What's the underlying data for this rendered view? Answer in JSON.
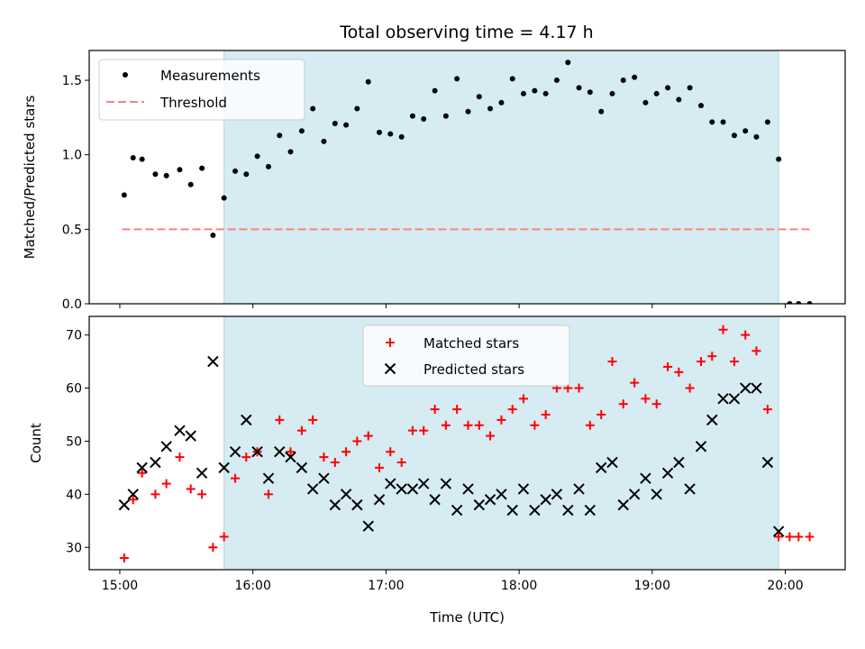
{
  "title": "Total observing time = 4.17 h",
  "colors": {
    "span": "#add8e6",
    "measurement": "#000000",
    "threshold": "#ff8080",
    "matched": "#ff0000",
    "predicted": "#000000"
  },
  "chart_data": [
    {
      "type": "scatter",
      "ylabel": "Matched/Predicted stars",
      "xlim": [
        14.77,
        20.45
      ],
      "ylim": [
        0,
        1.7
      ],
      "yticks": [
        0.0,
        0.5,
        1.0,
        1.5
      ],
      "ytick_labels": [
        "0.0",
        "0.5",
        "1.0",
        "1.5"
      ],
      "legend_position": "upper left",
      "highlight_span": [
        15.783,
        19.95
      ],
      "threshold": {
        "name": "Threshold",
        "value": 0.5,
        "x": [
          15.017,
          20.183
        ],
        "style": "dashed"
      },
      "series": [
        {
          "name": "Measurements",
          "x": [
            15.033,
            15.1,
            15.167,
            15.267,
            15.35,
            15.45,
            15.533,
            15.617,
            15.7,
            15.783,
            15.867,
            15.95,
            16.033,
            16.117,
            16.2,
            16.283,
            16.367,
            16.45,
            16.533,
            16.617,
            16.7,
            16.783,
            16.867,
            16.95,
            17.033,
            17.117,
            17.2,
            17.283,
            17.367,
            17.45,
            17.533,
            17.617,
            17.7,
            17.783,
            17.867,
            17.95,
            18.033,
            18.117,
            18.2,
            18.283,
            18.367,
            18.45,
            18.533,
            18.617,
            18.7,
            18.783,
            18.867,
            18.95,
            19.033,
            19.117,
            19.2,
            19.283,
            19.367,
            19.45,
            19.533,
            19.617,
            19.7,
            19.783,
            19.867,
            19.95,
            20.033,
            20.1,
            20.183
          ],
          "y": [
            0.73,
            0.98,
            0.97,
            0.87,
            0.86,
            0.9,
            0.8,
            0.91,
            0.46,
            0.71,
            0.89,
            0.87,
            0.99,
            0.92,
            1.13,
            1.02,
            1.16,
            1.31,
            1.09,
            1.21,
            1.2,
            1.31,
            1.49,
            1.15,
            1.14,
            1.12,
            1.26,
            1.24,
            1.43,
            1.26,
            1.51,
            1.29,
            1.39,
            1.31,
            1.35,
            1.51,
            1.41,
            1.43,
            1.41,
            1.5,
            1.62,
            1.45,
            1.42,
            1.29,
            1.41,
            1.5,
            1.52,
            1.35,
            1.41,
            1.45,
            1.37,
            1.45,
            1.33,
            1.22,
            1.22,
            1.13,
            1.16,
            1.12,
            1.22,
            0.97,
            0.0,
            0.0,
            0.0
          ]
        }
      ]
    },
    {
      "type": "scatter",
      "xlabel": "Time (UTC)",
      "ylabel": "Count",
      "xlim": [
        14.77,
        20.45
      ],
      "ylim": [
        25.8,
        73.5
      ],
      "xticks": [
        15,
        16,
        17,
        18,
        19,
        20
      ],
      "xtick_labels": [
        "15:00",
        "16:00",
        "17:00",
        "18:00",
        "19:00",
        "20:00"
      ],
      "yticks": [
        30,
        40,
        50,
        60,
        70
      ],
      "ytick_labels": [
        "30",
        "40",
        "50",
        "60",
        "70"
      ],
      "legend_position": "upper center",
      "highlight_span": [
        15.783,
        19.95
      ],
      "series": [
        {
          "name": "Matched stars",
          "marker": "+",
          "x": [
            15.033,
            15.1,
            15.167,
            15.267,
            15.35,
            15.45,
            15.533,
            15.617,
            15.7,
            15.783,
            15.867,
            15.95,
            16.033,
            16.117,
            16.2,
            16.283,
            16.367,
            16.45,
            16.533,
            16.617,
            16.7,
            16.783,
            16.867,
            16.95,
            17.033,
            17.117,
            17.2,
            17.283,
            17.367,
            17.45,
            17.533,
            17.617,
            17.7,
            17.783,
            17.867,
            17.95,
            18.033,
            18.117,
            18.2,
            18.283,
            18.367,
            18.45,
            18.533,
            18.617,
            18.7,
            18.783,
            18.867,
            18.95,
            19.033,
            19.117,
            19.2,
            19.283,
            19.367,
            19.45,
            19.533,
            19.617,
            19.7,
            19.783,
            19.867,
            19.95,
            20.033,
            20.1,
            20.183
          ],
          "y": [
            28,
            39,
            44,
            40,
            42,
            47,
            41,
            40,
            30,
            32,
            43,
            47,
            48,
            40,
            54,
            48,
            52,
            54,
            47,
            46,
            48,
            50,
            51,
            45,
            48,
            46,
            52,
            52,
            56,
            53,
            56,
            53,
            53,
            51,
            54,
            56,
            58,
            53,
            55,
            60,
            60,
            60,
            53,
            55,
            65,
            57,
            61,
            58,
            57,
            64,
            63,
            60,
            65,
            66,
            71,
            65,
            70,
            67,
            56,
            32,
            32,
            32,
            32
          ]
        },
        {
          "name": "Predicted stars",
          "marker": "x",
          "x": [
            15.033,
            15.1,
            15.167,
            15.267,
            15.35,
            15.45,
            15.533,
            15.617,
            15.7,
            15.783,
            15.867,
            15.95,
            16.033,
            16.117,
            16.2,
            16.283,
            16.367,
            16.45,
            16.533,
            16.617,
            16.7,
            16.783,
            16.867,
            16.95,
            17.033,
            17.117,
            17.2,
            17.283,
            17.367,
            17.45,
            17.533,
            17.617,
            17.7,
            17.783,
            17.867,
            17.95,
            18.033,
            18.117,
            18.2,
            18.283,
            18.367,
            18.45,
            18.533,
            18.617,
            18.7,
            18.783,
            18.867,
            18.95,
            19.033,
            19.117,
            19.2,
            19.283,
            19.367,
            19.45,
            19.533,
            19.617,
            19.7,
            19.783,
            19.867,
            19.95
          ],
          "y": [
            38,
            40,
            45,
            46,
            49,
            52,
            51,
            44,
            65,
            45,
            48,
            54,
            48,
            43,
            48,
            47,
            45,
            41,
            43,
            38,
            40,
            38,
            34,
            39,
            42,
            41,
            41,
            42,
            39,
            42,
            37,
            41,
            38,
            39,
            40,
            37,
            41,
            37,
            39,
            40,
            37,
            41,
            37,
            45,
            46,
            38,
            40,
            43,
            40,
            44,
            46,
            41,
            49,
            54,
            58,
            58,
            60,
            60,
            46,
            33
          ]
        }
      ]
    }
  ]
}
